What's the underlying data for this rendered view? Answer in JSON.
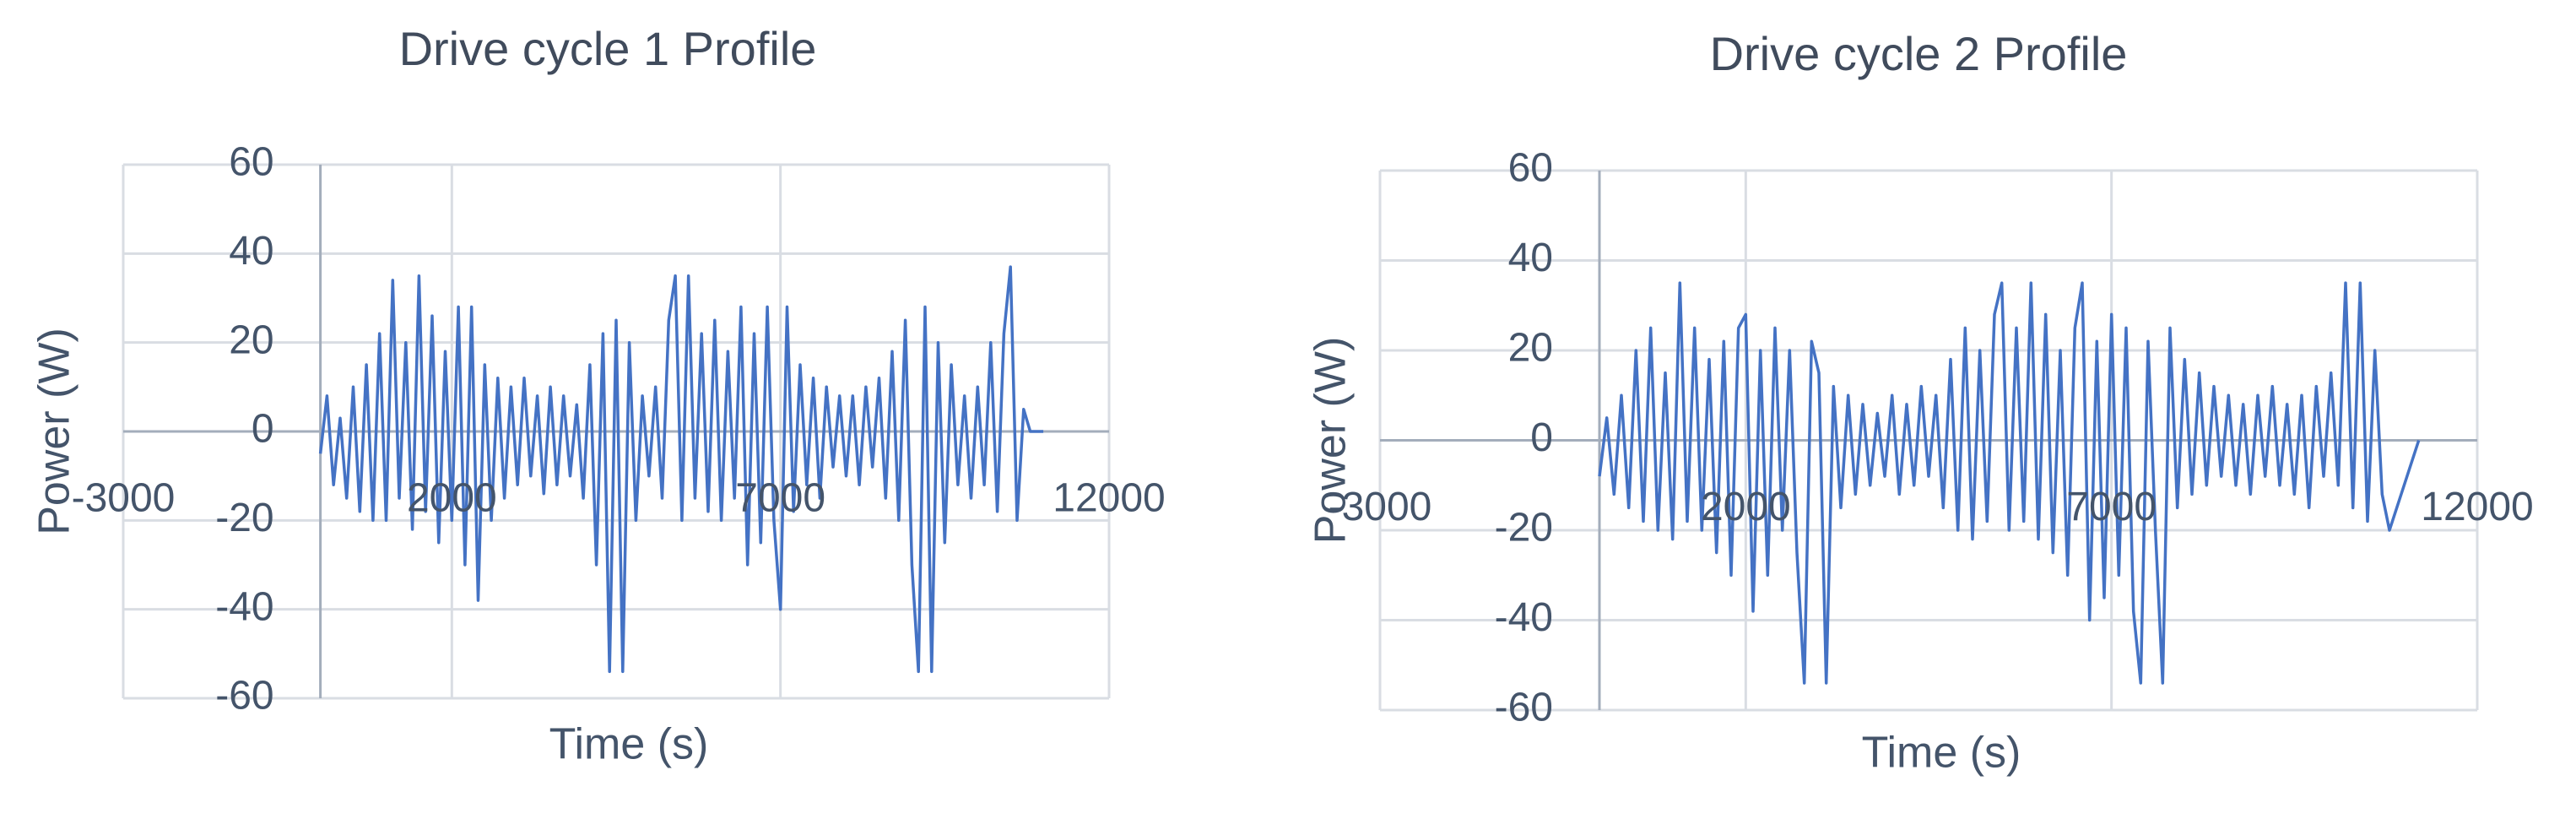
{
  "chart_data": [
    {
      "type": "line",
      "title": "Drive cycle 1 Profile",
      "xlabel": "Time (s)",
      "ylabel": "Power (W)",
      "xlim": [
        -3000,
        12000
      ],
      "xticks": [
        -3000,
        2000,
        7000,
        12000
      ],
      "ylim": [
        -60,
        60
      ],
      "yticks": [
        -60,
        -40,
        -20,
        0,
        20,
        40,
        60
      ],
      "grid": true,
      "x": [
        0,
        100,
        200,
        300,
        400,
        500,
        600,
        700,
        800,
        900,
        1000,
        1100,
        1200,
        1300,
        1400,
        1500,
        1600,
        1700,
        1800,
        1900,
        2000,
        2100,
        2200,
        2300,
        2400,
        2500,
        2600,
        2700,
        2800,
        2900,
        3000,
        3100,
        3200,
        3300,
        3400,
        3500,
        3600,
        3700,
        3800,
        3900,
        4000,
        4100,
        4200,
        4300,
        4400,
        4500,
        4600,
        4700,
        4800,
        4900,
        5000,
        5100,
        5200,
        5300,
        5400,
        5500,
        5600,
        5700,
        5800,
        5900,
        6000,
        6100,
        6200,
        6300,
        6400,
        6500,
        6600,
        6700,
        6800,
        6900,
        7000,
        7100,
        7200,
        7300,
        7400,
        7500,
        7600,
        7700,
        7800,
        7900,
        8000,
        8100,
        8200,
        8300,
        8400,
        8500,
        8600,
        8700,
        8800,
        8900,
        9000,
        9100,
        9200,
        9300,
        9400,
        9500,
        9600,
        9700,
        9800,
        9900,
        10000,
        10100,
        10200,
        10300,
        10400,
        10500,
        10600,
        10700,
        10800,
        11000
      ],
      "series": [
        {
          "name": "Power",
          "color": "#4472c4",
          "values": [
            -5,
            8,
            -12,
            3,
            -15,
            10,
            -18,
            15,
            -20,
            22,
            -20,
            34,
            -15,
            20,
            -22,
            35,
            -18,
            26,
            -25,
            18,
            -20,
            28,
            -30,
            28,
            -38,
            15,
            -20,
            12,
            -15,
            10,
            -12,
            12,
            -10,
            8,
            -14,
            10,
            -12,
            8,
            -10,
            6,
            -15,
            15,
            -30,
            22,
            -54,
            25,
            -54,
            20,
            -20,
            8,
            -10,
            10,
            -15,
            25,
            35,
            -20,
            35,
            -15,
            22,
            -18,
            25,
            -20,
            18,
            -15,
            28,
            -30,
            22,
            -25,
            28,
            -20,
            -40,
            28,
            -18,
            15,
            -12,
            12,
            -15,
            10,
            -8,
            8,
            -10,
            8,
            -12,
            10,
            -8,
            12,
            -15,
            18,
            -20,
            25,
            -30,
            -54,
            28,
            -54,
            20,
            -25,
            15,
            -12,
            8,
            -15,
            10,
            -12,
            20,
            -18,
            22,
            37,
            -20,
            5,
            0,
            0
          ]
        }
      ]
    },
    {
      "type": "line",
      "title": "Drive cycle 2 Profile",
      "xlabel": "Time (s)",
      "ylabel": "Power (W)",
      "xlim": [
        -3000,
        12000
      ],
      "xticks": [
        -3000,
        2000,
        7000,
        12000
      ],
      "ylim": [
        -60,
        60
      ],
      "yticks": [
        -60,
        -40,
        -20,
        0,
        20,
        40,
        60
      ],
      "grid": true,
      "x": [
        0,
        100,
        200,
        300,
        400,
        500,
        600,
        700,
        800,
        900,
        1000,
        1100,
        1200,
        1300,
        1400,
        1500,
        1600,
        1700,
        1800,
        1900,
        2000,
        2100,
        2200,
        2300,
        2400,
        2500,
        2600,
        2700,
        2800,
        2900,
        3000,
        3100,
        3200,
        3300,
        3400,
        3500,
        3600,
        3700,
        3800,
        3900,
        4000,
        4100,
        4200,
        4300,
        4400,
        4500,
        4600,
        4700,
        4800,
        4900,
        5000,
        5100,
        5200,
        5300,
        5400,
        5500,
        5600,
        5700,
        5800,
        5900,
        6000,
        6100,
        6200,
        6300,
        6400,
        6500,
        6600,
        6700,
        6800,
        6900,
        7000,
        7100,
        7200,
        7300,
        7400,
        7500,
        7600,
        7700,
        7800,
        7900,
        8000,
        8100,
        8200,
        8300,
        8400,
        8500,
        8600,
        8700,
        8800,
        8900,
        9000,
        9100,
        9200,
        9300,
        9400,
        9500,
        9600,
        9700,
        9800,
        9900,
        10000,
        10100,
        10200,
        10300,
        10400,
        10500,
        10600,
        10700,
        10800,
        11200
      ],
      "series": [
        {
          "name": "Power",
          "color": "#4472c4",
          "values": [
            -8,
            5,
            -12,
            10,
            -15,
            20,
            -18,
            25,
            -20,
            15,
            -22,
            35,
            -18,
            25,
            -20,
            18,
            -25,
            22,
            -30,
            25,
            28,
            -38,
            20,
            -30,
            25,
            -20,
            20,
            -25,
            -54,
            22,
            15,
            -54,
            12,
            -15,
            10,
            -12,
            8,
            -10,
            6,
            -8,
            10,
            -12,
            8,
            -10,
            12,
            -8,
            10,
            -15,
            18,
            -20,
            25,
            -22,
            20,
            -18,
            28,
            35,
            -20,
            25,
            -18,
            35,
            -22,
            28,
            -25,
            20,
            -30,
            25,
            35,
            -40,
            22,
            -35,
            28,
            -30,
            25,
            -38,
            -54,
            22,
            -20,
            -54,
            25,
            -15,
            18,
            -12,
            15,
            -10,
            12,
            -8,
            10,
            -10,
            8,
            -12,
            10,
            -8,
            12,
            -10,
            8,
            -12,
            10,
            -15,
            12,
            -8,
            15,
            -10,
            35,
            -15,
            35,
            -18,
            20,
            -12,
            -20,
            0
          ]
        }
      ]
    }
  ]
}
